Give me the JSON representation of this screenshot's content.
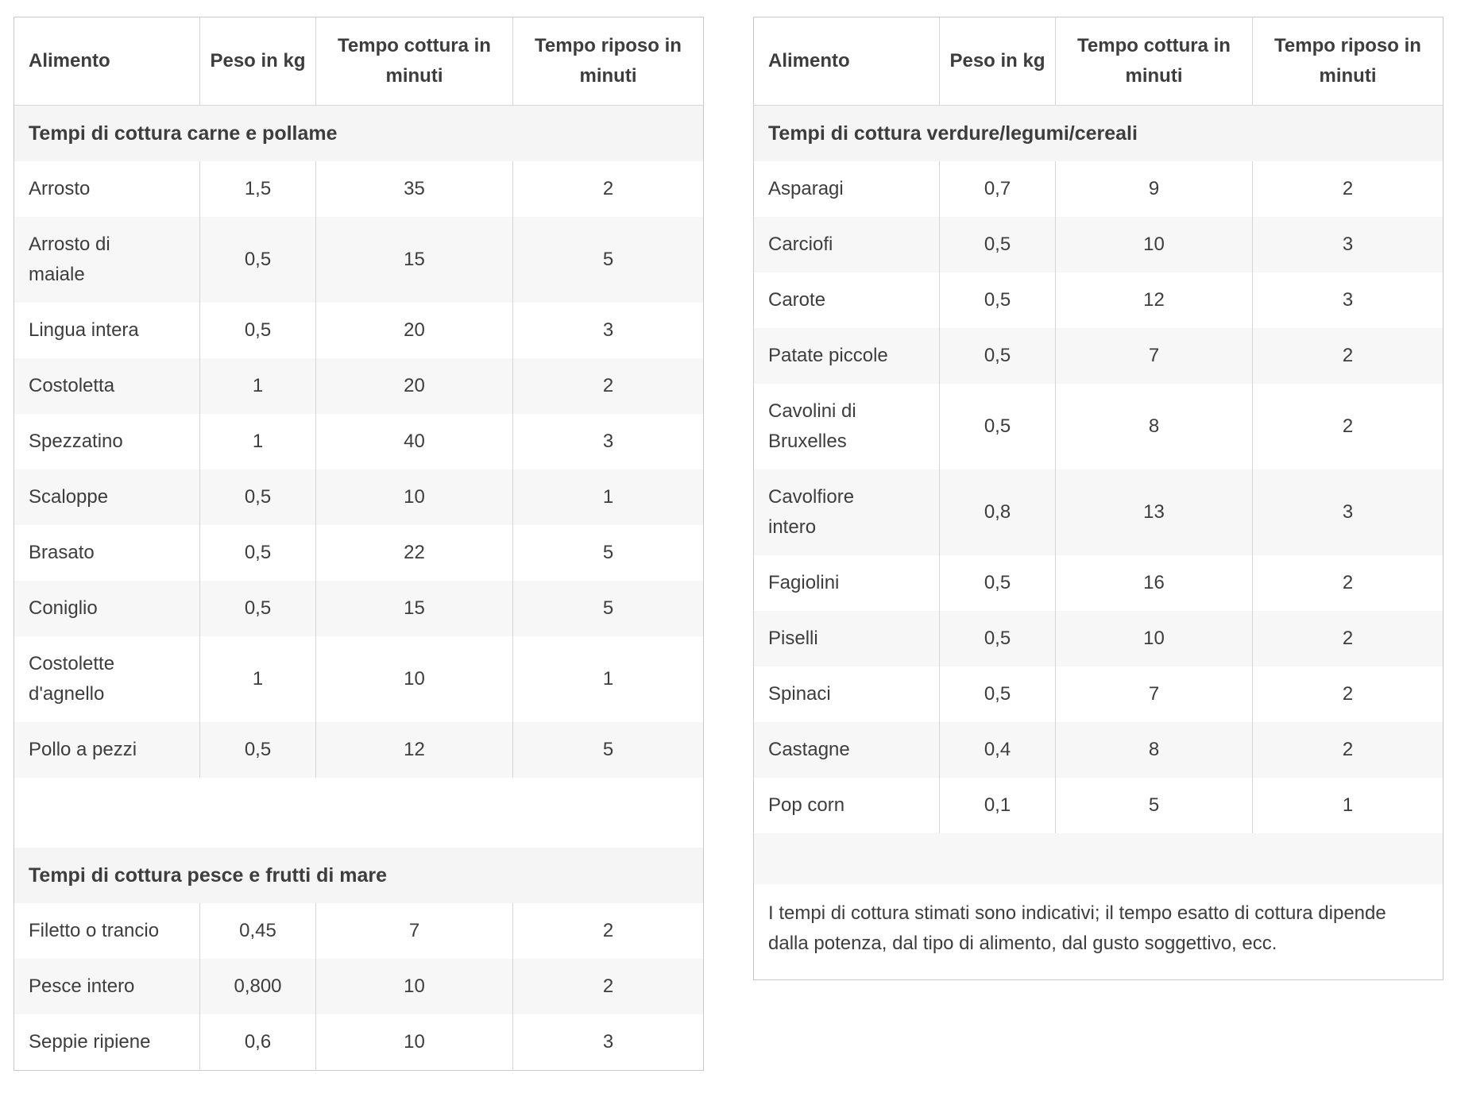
{
  "colors": {
    "text": "#3d3d3d",
    "outer_border": "#c9c9c9",
    "column_divider": "#d5d5d5",
    "row_stripe": "#f7f7f7",
    "section_background": "#f5f5f5",
    "background": "#ffffff"
  },
  "columns": [
    "Alimento",
    "Peso in kg",
    "Tempo cottura in minuti",
    "Tempo riposo in minuti"
  ],
  "left": {
    "section1": "Tempi di cottura carne e pollame",
    "rows1": [
      {
        "alimento": "Arrosto",
        "peso": "1,5",
        "cottura": "35",
        "riposo": "2"
      },
      {
        "alimento": "Arrosto di maiale",
        "peso": "0,5",
        "cottura": "15",
        "riposo": "5"
      },
      {
        "alimento": "Lingua intera",
        "peso": "0,5",
        "cottura": "20",
        "riposo": "3"
      },
      {
        "alimento": "Costoletta",
        "peso": "1",
        "cottura": "20",
        "riposo": "2"
      },
      {
        "alimento": "Spezzatino",
        "peso": "1",
        "cottura": "40",
        "riposo": "3"
      },
      {
        "alimento": "Scaloppe",
        "peso": "0,5",
        "cottura": "10",
        "riposo": "1"
      },
      {
        "alimento": "Brasato",
        "peso": "0,5",
        "cottura": "22",
        "riposo": "5"
      },
      {
        "alimento": "Coniglio",
        "peso": "0,5",
        "cottura": "15",
        "riposo": "5"
      },
      {
        "alimento": "Costolette d'agnello",
        "peso": "1",
        "cottura": "10",
        "riposo": "1"
      },
      {
        "alimento": "Pollo a pezzi",
        "peso": "0,5",
        "cottura": "12",
        "riposo": "5"
      }
    ],
    "section2": "Tempi di cottura pesce e frutti di mare",
    "rows2": [
      {
        "alimento": "Filetto o trancio",
        "peso": "0,45",
        "cottura": "7",
        "riposo": "2"
      },
      {
        "alimento": "Pesce intero",
        "peso": "0,800",
        "cottura": "10",
        "riposo": "2"
      },
      {
        "alimento": "Seppie ripiene",
        "peso": "0,6",
        "cottura": "10",
        "riposo": "3"
      }
    ]
  },
  "right": {
    "section": "Tempi di cottura verdure/legumi/cereali",
    "rows": [
      {
        "alimento": "Asparagi",
        "peso": "0,7",
        "cottura": "9",
        "riposo": "2"
      },
      {
        "alimento": "Carciofi",
        "peso": "0,5",
        "cottura": "10",
        "riposo": "3"
      },
      {
        "alimento": "Carote",
        "peso": "0,5",
        "cottura": "12",
        "riposo": "3"
      },
      {
        "alimento": "Patate piccole",
        "peso": "0,5",
        "cottura": "7",
        "riposo": "2"
      },
      {
        "alimento": "Cavolini di Bruxelles",
        "peso": "0,5",
        "cottura": "8",
        "riposo": "2"
      },
      {
        "alimento": "Cavolfiore intero",
        "peso": "0,8",
        "cottura": "13",
        "riposo": "3"
      },
      {
        "alimento": "Fagiolini",
        "peso": "0,5",
        "cottura": "16",
        "riposo": "2"
      },
      {
        "alimento": "Piselli",
        "peso": "0,5",
        "cottura": "10",
        "riposo": "2"
      },
      {
        "alimento": "Spinaci",
        "peso": "0,5",
        "cottura": "7",
        "riposo": "2"
      },
      {
        "alimento": "Castagne",
        "peso": "0,4",
        "cottura": "8",
        "riposo": "2"
      },
      {
        "alimento": "Pop corn",
        "peso": "0,1",
        "cottura": "5",
        "riposo": "1"
      }
    ],
    "note": "I tempi di cottura stimati sono indicativi; il tempo esatto di cottura dipende dalla potenza, dal tipo di alimento, dal gusto soggettivo, ecc."
  }
}
